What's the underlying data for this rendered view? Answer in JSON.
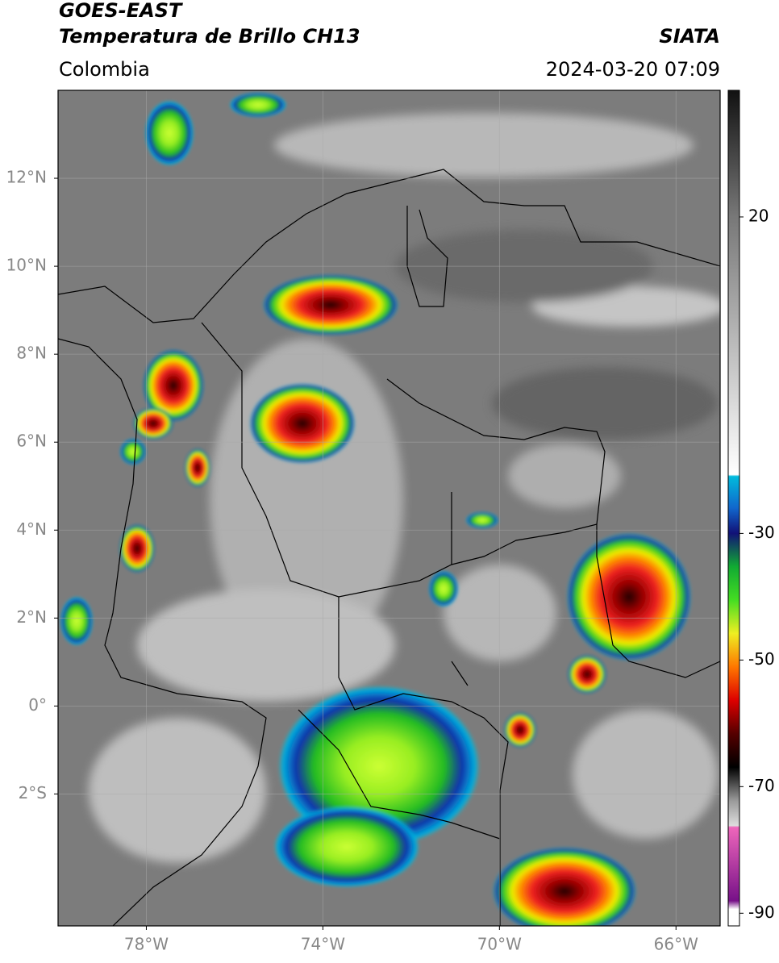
{
  "header": {
    "title": "GOES-EAST",
    "subtitle": "Temperatura de Brillo CH13",
    "source": "SIATA",
    "region": "Colombia",
    "datetime": "2024-03-20 07:09"
  },
  "map": {
    "xlim": [
      -80,
      -65
    ],
    "ylim": [
      -5,
      14
    ],
    "xticks": [
      {
        "value": -78,
        "label": "78°W"
      },
      {
        "value": -74,
        "label": "74°W"
      },
      {
        "value": -70,
        "label": "70°W"
      },
      {
        "value": -66,
        "label": "66°W"
      }
    ],
    "yticks": [
      {
        "value": 12,
        "label": "12°N"
      },
      {
        "value": 10,
        "label": "10°N"
      },
      {
        "value": 8,
        "label": "8°N"
      },
      {
        "value": 6,
        "label": "6°N"
      },
      {
        "value": 4,
        "label": "4°N"
      },
      {
        "value": 2,
        "label": "2°N"
      },
      {
        "value": 0,
        "label": "0°"
      },
      {
        "value": -2,
        "label": "2°S"
      }
    ],
    "grid": true
  },
  "colorbar": {
    "lim": [
      -92,
      40
    ],
    "ticks": [
      20,
      -30,
      -50,
      -70,
      -90
    ]
  }
}
